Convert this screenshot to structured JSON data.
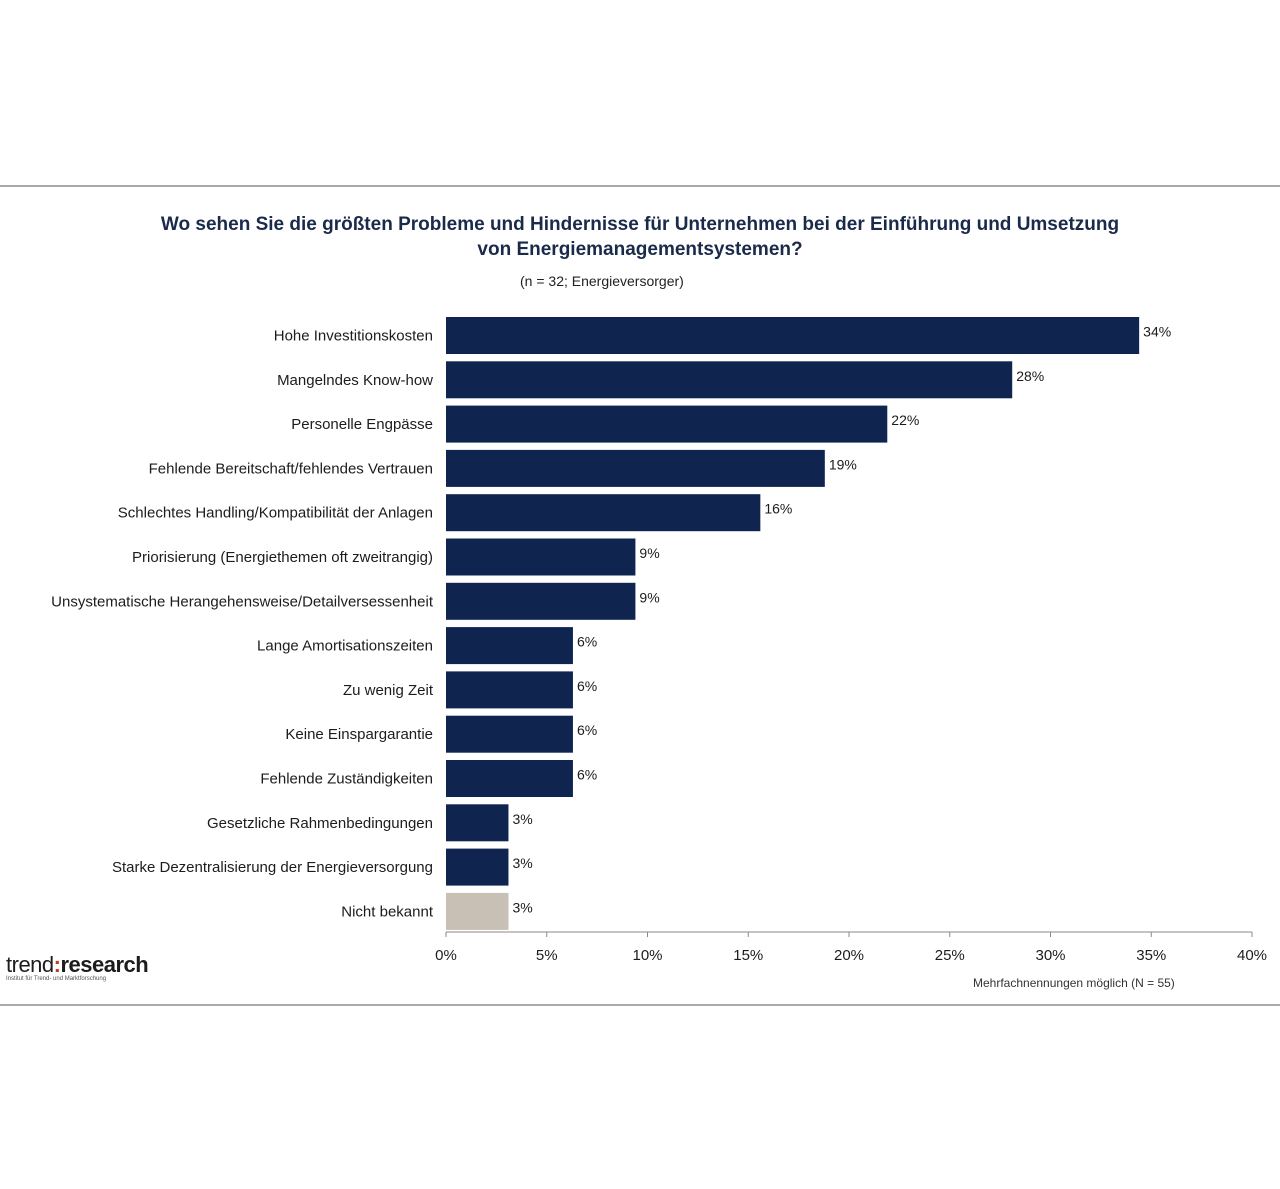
{
  "chart_data": {
    "type": "bar",
    "orientation": "horizontal",
    "title_line1": "Wo sehen Sie die größten Probleme und Hindernisse für Unternehmen bei der Einführung und Umsetzung",
    "title_line2": "von Energiemanagementsystemen?",
    "subtitle": "(n = 32; Energieversorger)",
    "categories": [
      "Hohe Investitionskosten",
      "Mangelndes Know-how",
      "Personelle Engpässe",
      "Fehlende Bereitschaft/fehlendes Vertrauen",
      "Schlechtes Handling/Kompatibilität der Anlagen",
      "Priorisierung (Energiethemen oft zweitrangig)",
      "Unsystematische Herangehensweise/Detailversessenheit",
      "Lange Amortisationszeiten",
      "Zu wenig Zeit",
      "Keine Einspargarantie",
      "Fehlende Zuständigkeiten",
      "Gesetzliche Rahmenbedingungen",
      "Starke Dezentralisierung der Energieversorgung",
      "Nicht bekannt"
    ],
    "values": [
      34.4,
      28.1,
      21.9,
      18.8,
      15.6,
      9.4,
      9.4,
      6.3,
      6.3,
      6.3,
      6.3,
      3.1,
      3.1,
      3.1
    ],
    "value_labels": [
      "34%",
      "28%",
      "22%",
      "19%",
      "16%",
      "9%",
      "9%",
      "6%",
      "6%",
      "6%",
      "6%",
      "3%",
      "3%",
      "3%"
    ],
    "bar_colors": [
      "#0f2550",
      "#0f2550",
      "#0f2550",
      "#0f2550",
      "#0f2550",
      "#0f2550",
      "#0f2550",
      "#0f2550",
      "#0f2550",
      "#0f2550",
      "#0f2550",
      "#0f2550",
      "#0f2550",
      "#c8c0b4"
    ],
    "xlim": [
      0,
      40
    ],
    "xticks": [
      "0%",
      "5%",
      "10%",
      "15%",
      "20%",
      "25%",
      "30%",
      "35%",
      "40%"
    ],
    "grid": false,
    "footnote": "Mehrfachnennungen möglich (N = 55)"
  },
  "logo": {
    "part1": "trend",
    "colon": ":",
    "part2": "research",
    "tagline": "Institut für Trend- und Marktforschung"
  }
}
